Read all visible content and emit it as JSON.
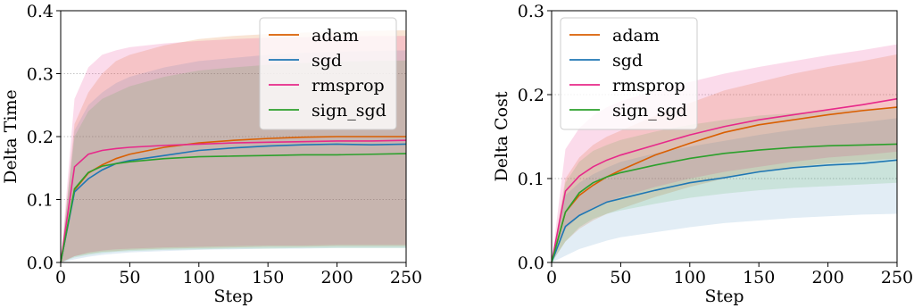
{
  "colors": {
    "adam": "#d95f02",
    "sgd": "#1f77b4",
    "rmsprop": "#e7298a",
    "sign_sgd": "#2ca02c"
  },
  "chart_data": [
    {
      "type": "line",
      "xlabel": "Step",
      "ylabel": "Delta Time",
      "xlim": [
        0,
        250
      ],
      "ylim": [
        0,
        0.4
      ],
      "xticks": [
        0,
        50,
        100,
        150,
        200,
        250
      ],
      "yticks": [
        0.0,
        0.1,
        0.2,
        0.3,
        0.4
      ],
      "xtick_labels": [
        "0",
        "50",
        "100",
        "150",
        "200",
        "250"
      ],
      "ytick_labels": [
        "0.0",
        "0.1",
        "0.2",
        "0.3",
        "0.4"
      ],
      "grid": "horizontal-dotted",
      "legend_position": "top-right",
      "series": [
        {
          "name": "adam",
          "x": [
            0,
            10,
            20,
            30,
            40,
            50,
            75,
            100,
            125,
            150,
            175,
            200,
            225,
            250
          ],
          "y": [
            0,
            0.115,
            0.142,
            0.155,
            0.165,
            0.172,
            0.183,
            0.19,
            0.194,
            0.197,
            0.199,
            0.2,
            0.2,
            0.2
          ],
          "upper": [
            0,
            0.22,
            0.27,
            0.3,
            0.32,
            0.33,
            0.345,
            0.355,
            0.36,
            0.363,
            0.365,
            0.367,
            0.368,
            0.369
          ],
          "lower": [
            0,
            0.01,
            0.014,
            0.017,
            0.018,
            0.02,
            0.022,
            0.023,
            0.024,
            0.025,
            0.025,
            0.026,
            0.026,
            0.026
          ]
        },
        {
          "name": "sgd",
          "x": [
            0,
            10,
            20,
            30,
            40,
            50,
            75,
            100,
            125,
            150,
            175,
            200,
            225,
            250
          ],
          "y": [
            0,
            0.112,
            0.133,
            0.147,
            0.157,
            0.162,
            0.17,
            0.178,
            0.182,
            0.185,
            0.187,
            0.188,
            0.187,
            0.188
          ],
          "upper": [
            0,
            0.21,
            0.25,
            0.27,
            0.285,
            0.295,
            0.31,
            0.32,
            0.325,
            0.33,
            0.333,
            0.335,
            0.336,
            0.337
          ],
          "lower": [
            0,
            0.005,
            0.009,
            0.012,
            0.014,
            0.016,
            0.018,
            0.02,
            0.021,
            0.022,
            0.022,
            0.023,
            0.023,
            0.023
          ]
        },
        {
          "name": "rmsprop",
          "x": [
            0,
            10,
            20,
            30,
            40,
            50,
            75,
            100,
            125,
            150,
            175,
            200,
            225,
            250
          ],
          "y": [
            0,
            0.152,
            0.172,
            0.178,
            0.181,
            0.183,
            0.186,
            0.188,
            0.19,
            0.191,
            0.192,
            0.193,
            0.193,
            0.194
          ],
          "upper": [
            0,
            0.26,
            0.31,
            0.33,
            0.337,
            0.342,
            0.348,
            0.352,
            0.355,
            0.357,
            0.358,
            0.359,
            0.36,
            0.36
          ],
          "lower": [
            0,
            0.01,
            0.016,
            0.019,
            0.021,
            0.022,
            0.024,
            0.025,
            0.026,
            0.027,
            0.027,
            0.028,
            0.028,
            0.028
          ]
        },
        {
          "name": "sign_sgd",
          "x": [
            0,
            10,
            20,
            30,
            40,
            50,
            75,
            100,
            125,
            150,
            175,
            200,
            225,
            250
          ],
          "y": [
            0,
            0.117,
            0.143,
            0.153,
            0.157,
            0.16,
            0.165,
            0.168,
            0.169,
            0.17,
            0.171,
            0.171,
            0.172,
            0.173
          ],
          "upper": [
            0,
            0.2,
            0.24,
            0.26,
            0.27,
            0.28,
            0.295,
            0.305,
            0.31,
            0.314,
            0.317,
            0.319,
            0.32,
            0.321
          ],
          "lower": [
            0,
            0.008,
            0.012,
            0.015,
            0.017,
            0.018,
            0.02,
            0.021,
            0.022,
            0.022,
            0.023,
            0.023,
            0.023,
            0.023
          ]
        }
      ]
    },
    {
      "type": "line",
      "xlabel": "Step",
      "ylabel": "Delta Cost",
      "xlim": [
        0,
        250
      ],
      "ylim": [
        0,
        0.3
      ],
      "xticks": [
        0,
        50,
        100,
        150,
        200,
        250
      ],
      "yticks": [
        0.0,
        0.1,
        0.2,
        0.3
      ],
      "xtick_labels": [
        "0",
        "50",
        "100",
        "150",
        "200",
        "250"
      ],
      "ytick_labels": [
        "0.0",
        "0.1",
        "0.2",
        "0.3"
      ],
      "grid": "horizontal-dotted",
      "legend_position": "top-left",
      "series": [
        {
          "name": "adam",
          "x": [
            0,
            10,
            20,
            30,
            40,
            50,
            75,
            100,
            125,
            150,
            175,
            200,
            225,
            250
          ],
          "y": [
            0,
            0.06,
            0.08,
            0.092,
            0.102,
            0.11,
            0.128,
            0.142,
            0.155,
            0.164,
            0.17,
            0.176,
            0.181,
            0.185
          ],
          "upper": [
            0,
            0.1,
            0.125,
            0.14,
            0.15,
            0.157,
            0.175,
            0.19,
            0.205,
            0.215,
            0.225,
            0.233,
            0.24,
            0.248
          ],
          "lower": [
            0,
            0.025,
            0.04,
            0.05,
            0.058,
            0.064,
            0.078,
            0.09,
            0.1,
            0.108,
            0.114,
            0.118,
            0.121,
            0.124
          ]
        },
        {
          "name": "sgd",
          "x": [
            0,
            10,
            20,
            30,
            40,
            50,
            75,
            100,
            125,
            150,
            175,
            200,
            225,
            250
          ],
          "y": [
            0,
            0.043,
            0.056,
            0.064,
            0.072,
            0.076,
            0.086,
            0.095,
            0.101,
            0.108,
            0.113,
            0.116,
            0.118,
            0.122
          ],
          "upper": [
            0,
            0.08,
            0.095,
            0.105,
            0.113,
            0.12,
            0.13,
            0.138,
            0.145,
            0.152,
            0.158,
            0.163,
            0.167,
            0.172
          ],
          "lower": [
            0,
            0.008,
            0.016,
            0.021,
            0.026,
            0.03,
            0.036,
            0.042,
            0.047,
            0.05,
            0.053,
            0.055,
            0.057,
            0.058
          ]
        },
        {
          "name": "rmsprop",
          "x": [
            0,
            10,
            20,
            30,
            40,
            50,
            75,
            100,
            125,
            150,
            175,
            200,
            225,
            250
          ],
          "y": [
            0,
            0.085,
            0.103,
            0.114,
            0.122,
            0.128,
            0.14,
            0.152,
            0.162,
            0.17,
            0.176,
            0.182,
            0.188,
            0.195
          ],
          "upper": [
            0,
            0.135,
            0.16,
            0.175,
            0.185,
            0.192,
            0.205,
            0.215,
            0.225,
            0.233,
            0.24,
            0.247,
            0.253,
            0.26
          ],
          "lower": [
            0,
            0.04,
            0.055,
            0.065,
            0.072,
            0.078,
            0.09,
            0.1,
            0.108,
            0.114,
            0.12,
            0.125,
            0.128,
            0.132
          ]
        },
        {
          "name": "sign_sgd",
          "x": [
            0,
            10,
            20,
            30,
            40,
            50,
            75,
            100,
            125,
            150,
            175,
            200,
            225,
            250
          ],
          "y": [
            0,
            0.06,
            0.083,
            0.095,
            0.102,
            0.107,
            0.116,
            0.124,
            0.13,
            0.134,
            0.137,
            0.139,
            0.14,
            0.141
          ],
          "upper": [
            0,
            0.095,
            0.12,
            0.133,
            0.14,
            0.146,
            0.156,
            0.164,
            0.17,
            0.175,
            0.178,
            0.181,
            0.183,
            0.185
          ],
          "lower": [
            0,
            0.025,
            0.042,
            0.052,
            0.058,
            0.062,
            0.07,
            0.077,
            0.082,
            0.086,
            0.089,
            0.091,
            0.093,
            0.095
          ]
        }
      ]
    }
  ]
}
